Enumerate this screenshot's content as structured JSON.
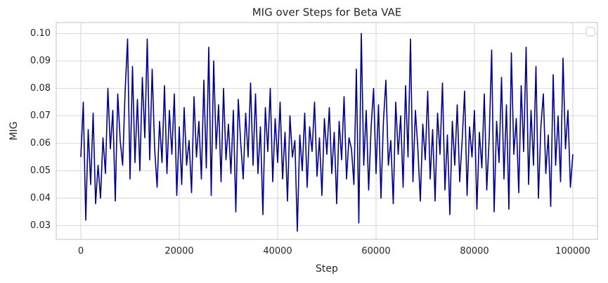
{
  "chart_data": {
    "type": "line",
    "title": "MIG over Steps for Beta VAE",
    "x_label": "Step",
    "y_label": "MIG",
    "color": "#00008b",
    "grid": true,
    "xlim": [
      -5000,
      105000
    ],
    "ylim": [
      0.025,
      0.104
    ],
    "xticks": [
      0,
      20000,
      40000,
      60000,
      80000,
      100000
    ],
    "yticks": [
      0.03,
      0.04,
      0.05,
      0.06,
      0.07,
      0.08,
      0.09,
      {
        "value": 0.1,
        "label": "0.10"
      }
    ],
    "x": [
      0,
      500,
      1000,
      1500,
      2000,
      2500,
      3000,
      3500,
      4000,
      4500,
      5000,
      5500,
      6000,
      6500,
      7000,
      7500,
      8000,
      8500,
      9000,
      9500,
      10000,
      10500,
      11000,
      11500,
      12000,
      12500,
      13000,
      13500,
      14000,
      14500,
      15000,
      15500,
      16000,
      16500,
      17000,
      17500,
      18000,
      18500,
      19000,
      19500,
      20000,
      20500,
      21000,
      21500,
      22000,
      22500,
      23000,
      23500,
      24000,
      24500,
      25000,
      25500,
      26000,
      26500,
      27000,
      27500,
      28000,
      28500,
      29000,
      29500,
      30000,
      30500,
      31000,
      31500,
      32000,
      32500,
      33000,
      33500,
      34000,
      34500,
      35000,
      35500,
      36000,
      36500,
      37000,
      37500,
      38000,
      38500,
      39000,
      39500,
      40000,
      40500,
      41000,
      41500,
      42000,
      42500,
      43000,
      43500,
      44000,
      44500,
      45000,
      45500,
      46000,
      46500,
      47000,
      47500,
      48000,
      48500,
      49000,
      49500,
      50000,
      50500,
      51000,
      51500,
      52000,
      52500,
      53000,
      53500,
      54000,
      54500,
      55000,
      55500,
      56000,
      56500,
      57000,
      57500,
      58000,
      58500,
      59000,
      59500,
      60000,
      60500,
      61000,
      61500,
      62000,
      62500,
      63000,
      63500,
      64000,
      64500,
      65000,
      65500,
      66000,
      66500,
      67000,
      67500,
      68000,
      68500,
      69000,
      69500,
      70000,
      70500,
      71000,
      71500,
      72000,
      72500,
      73000,
      73500,
      74000,
      74500,
      75000,
      75500,
      76000,
      76500,
      77000,
      77500,
      78000,
      78500,
      79000,
      79500,
      80000,
      80500,
      81000,
      81500,
      82000,
      82500,
      83000,
      83500,
      84000,
      84500,
      85000,
      85500,
      86000,
      86500,
      87000,
      87500,
      88000,
      88500,
      89000,
      89500,
      90000,
      90500,
      91000,
      91500,
      92000,
      92500,
      93000,
      93500,
      94000,
      94500,
      95000,
      95500,
      96000,
      96500,
      97000,
      97500,
      98000,
      98500,
      99000,
      99500,
      100000
    ],
    "values": [
      0.055,
      0.075,
      0.032,
      0.065,
      0.045,
      0.071,
      0.038,
      0.052,
      0.04,
      0.062,
      0.049,
      0.08,
      0.058,
      0.072,
      0.039,
      0.078,
      0.061,
      0.052,
      0.079,
      0.098,
      0.047,
      0.088,
      0.053,
      0.076,
      0.05,
      0.084,
      0.062,
      0.098,
      0.054,
      0.087,
      0.058,
      0.044,
      0.068,
      0.053,
      0.081,
      0.049,
      0.072,
      0.056,
      0.078,
      0.041,
      0.066,
      0.045,
      0.073,
      0.052,
      0.061,
      0.042,
      0.077,
      0.055,
      0.068,
      0.047,
      0.083,
      0.051,
      0.095,
      0.041,
      0.09,
      0.058,
      0.074,
      0.046,
      0.08,
      0.054,
      0.067,
      0.049,
      0.072,
      0.035,
      0.076,
      0.06,
      0.047,
      0.071,
      0.055,
      0.082,
      0.052,
      0.078,
      0.049,
      0.066,
      0.034,
      0.073,
      0.057,
      0.08,
      0.046,
      0.069,
      0.053,
      0.075,
      0.047,
      0.064,
      0.039,
      0.07,
      0.055,
      0.061,
      0.028,
      0.063,
      0.05,
      0.071,
      0.044,
      0.066,
      0.057,
      0.075,
      0.048,
      0.062,
      0.041,
      0.069,
      0.056,
      0.073,
      0.049,
      0.064,
      0.038,
      0.068,
      0.054,
      0.077,
      0.047,
      0.062,
      0.058,
      0.045,
      0.087,
      0.031,
      0.1,
      0.052,
      0.072,
      0.043,
      0.066,
      0.08,
      0.049,
      0.074,
      0.04,
      0.068,
      0.083,
      0.052,
      0.061,
      0.038,
      0.075,
      0.056,
      0.07,
      0.044,
      0.081,
      0.055,
      0.098,
      0.046,
      0.072,
      0.058,
      0.039,
      0.067,
      0.054,
      0.079,
      0.047,
      0.065,
      0.039,
      0.071,
      0.056,
      0.082,
      0.043,
      0.063,
      0.034,
      0.068,
      0.052,
      0.074,
      0.046,
      0.061,
      0.079,
      0.041,
      0.066,
      0.055,
      0.072,
      0.036,
      0.064,
      0.051,
      0.078,
      0.043,
      0.062,
      0.094,
      0.035,
      0.068,
      0.053,
      0.084,
      0.047,
      0.074,
      0.036,
      0.093,
      0.056,
      0.069,
      0.042,
      0.081,
      0.057,
      0.095,
      0.045,
      0.072,
      0.052,
      0.088,
      0.04,
      0.066,
      0.078,
      0.049,
      0.063,
      0.037,
      0.085,
      0.052,
      0.07,
      0.046,
      0.091,
      0.058,
      0.072,
      0.044,
      0.056
    ]
  }
}
